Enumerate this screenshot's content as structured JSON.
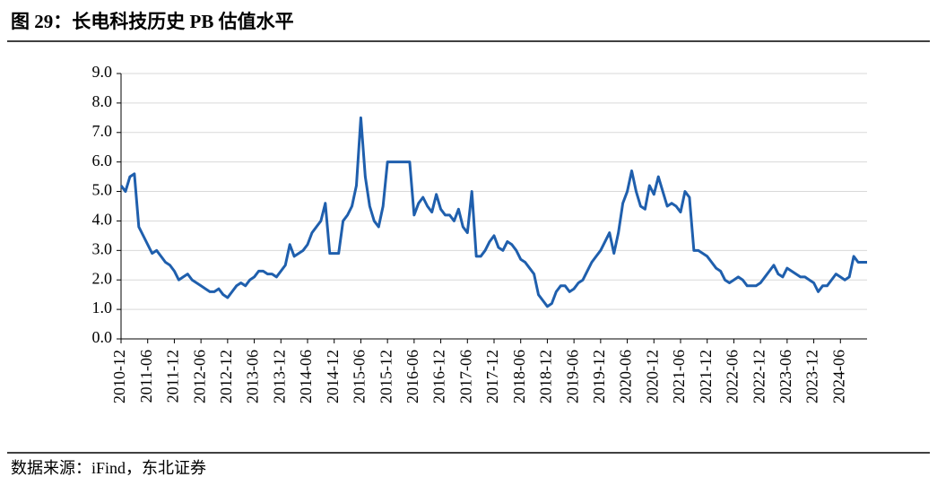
{
  "chart_data": {
    "type": "line",
    "title": "图 29：长电科技历史 PB 估值水平",
    "source": "数据来源：iFind，东北证券",
    "categories": [
      "2010-12",
      null,
      null,
      null,
      null,
      null,
      "2011-06",
      null,
      null,
      null,
      null,
      null,
      "2011-12",
      null,
      null,
      null,
      null,
      null,
      "2012-06",
      null,
      null,
      null,
      null,
      null,
      "2012-12",
      null,
      null,
      null,
      null,
      null,
      "2013-06",
      null,
      null,
      null,
      null,
      null,
      "2013-12",
      null,
      null,
      null,
      null,
      null,
      "2014-06",
      null,
      null,
      null,
      null,
      null,
      "2014-12",
      null,
      null,
      null,
      null,
      null,
      "2015-06",
      null,
      null,
      null,
      null,
      null,
      "2015-12",
      null,
      null,
      null,
      null,
      null,
      "2016-06",
      null,
      null,
      null,
      null,
      null,
      "2016-12",
      null,
      null,
      null,
      null,
      null,
      "2017-06",
      null,
      null,
      null,
      null,
      null,
      "2017-12",
      null,
      null,
      null,
      null,
      null,
      "2018-06",
      null,
      null,
      null,
      null,
      null,
      "2018-12",
      null,
      null,
      null,
      null,
      null,
      "2019-06",
      null,
      null,
      null,
      null,
      null,
      "2019-12",
      null,
      null,
      null,
      null,
      null,
      "2020-06",
      null,
      null,
      null,
      null,
      null,
      "2020-12",
      null,
      null,
      null,
      null,
      null,
      "2021-06",
      null,
      null,
      null,
      null,
      null,
      "2021-12",
      null,
      null,
      null,
      null,
      null,
      "2022-06",
      null,
      null,
      null,
      null,
      null,
      "2022-12",
      null,
      null,
      null,
      null,
      null,
      "2023-06",
      null,
      null,
      null,
      null,
      null,
      "2023-12",
      null,
      null,
      null,
      null,
      null,
      "2024-06",
      null,
      null,
      null,
      null,
      null,
      null
    ],
    "series": [
      {
        "name": "PB",
        "color": "#1f5fad",
        "values": [
          5.2,
          5.0,
          5.5,
          5.6,
          3.8,
          3.5,
          3.2,
          2.9,
          3.0,
          2.8,
          2.6,
          2.5,
          2.3,
          2.0,
          2.1,
          2.2,
          2.0,
          1.9,
          1.8,
          1.7,
          1.6,
          1.6,
          1.7,
          1.5,
          1.4,
          1.6,
          1.8,
          1.9,
          1.8,
          2.0,
          2.1,
          2.3,
          2.3,
          2.2,
          2.2,
          2.1,
          2.3,
          2.5,
          3.2,
          2.8,
          2.9,
          3.0,
          3.2,
          3.6,
          3.8,
          4.0,
          4.6,
          2.9,
          2.9,
          2.9,
          4.0,
          4.2,
          4.5,
          5.2,
          7.5,
          5.5,
          4.5,
          4.0,
          3.8,
          4.5,
          6.0,
          6.0,
          6.0,
          6.0,
          6.0,
          6.0,
          4.2,
          4.6,
          4.8,
          4.5,
          4.3,
          4.9,
          4.4,
          4.2,
          4.2,
          4.0,
          4.4,
          3.8,
          3.6,
          5.0,
          2.8,
          2.8,
          3.0,
          3.3,
          3.5,
          3.1,
          3.0,
          3.3,
          3.2,
          3.0,
          2.7,
          2.6,
          2.4,
          2.2,
          1.5,
          1.3,
          1.1,
          1.2,
          1.6,
          1.8,
          1.8,
          1.6,
          1.7,
          1.9,
          2.0,
          2.3,
          2.6,
          2.8,
          3.0,
          3.3,
          3.6,
          2.9,
          3.6,
          4.6,
          5.0,
          5.7,
          5.0,
          4.5,
          4.4,
          5.2,
          4.9,
          5.5,
          5.0,
          4.5,
          4.6,
          4.5,
          4.3,
          5.0,
          4.8,
          3.0,
          3.0,
          2.9,
          2.8,
          2.6,
          2.4,
          2.3,
          2.0,
          1.9,
          2.0,
          2.1,
          2.0,
          1.8,
          1.8,
          1.8,
          1.9,
          2.1,
          2.3,
          2.5,
          2.2,
          2.1,
          2.4,
          2.3,
          2.2,
          2.1,
          2.1,
          2.0,
          1.9,
          1.6,
          1.8,
          1.8,
          2.0,
          2.2,
          2.1,
          2.0,
          2.1,
          2.8,
          2.6,
          2.6,
          2.6
        ]
      }
    ],
    "ylim": [
      0,
      9
    ],
    "yticks": [
      {
        "value": 0,
        "label": "0.0"
      },
      {
        "value": 1,
        "label": "1.0"
      },
      {
        "value": 2,
        "label": "2.0"
      },
      {
        "value": 3,
        "label": "3.0"
      },
      {
        "value": 4,
        "label": "4.0"
      },
      {
        "value": 5,
        "label": "5.0"
      },
      {
        "value": 6,
        "label": "6.0"
      },
      {
        "value": 7,
        "label": "7.0"
      },
      {
        "value": 8,
        "label": "8.0"
      },
      {
        "value": 9,
        "label": "9.0"
      }
    ],
    "grid": true
  }
}
